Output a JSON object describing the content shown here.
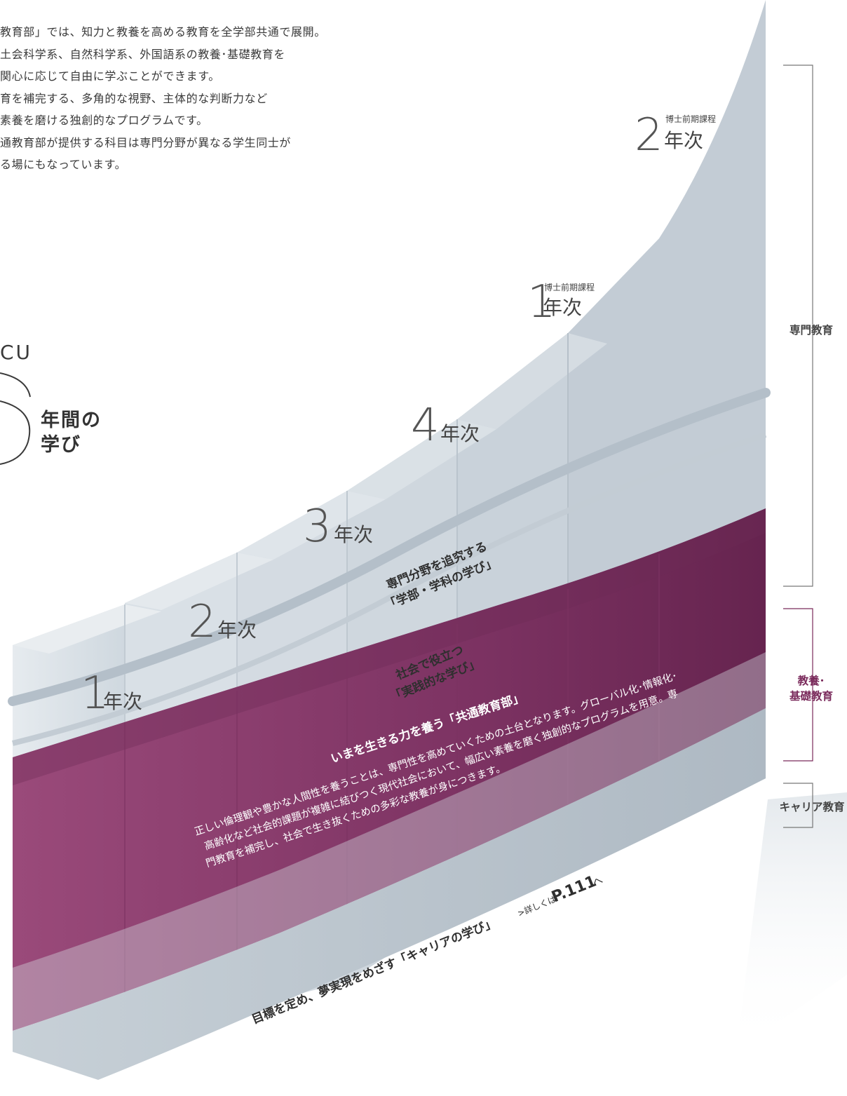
{
  "intro_lines": [
    "教育部」では、知力と教養を高める教育を全学部共通で展開。",
    "土会科学系、自然科学系、外国語系の教養･基礎教育を",
    "関心に応じて自由に学ぶことができます。",
    "育を補完する、多角的な視野、主体的な判断力など",
    "素養を磨ける独創的なプログラムです。",
    "通教育部が提供する科目は専門分野が異なる学生同士が",
    "る場にもなっています。"
  ],
  "logo": {
    "cu": "CU",
    "years_line1": "年間の",
    "years_line2": "学び"
  },
  "steps": [
    {
      "numeral": "1",
      "label": "年次",
      "sublabel": ""
    },
    {
      "numeral": "2",
      "label": "年次",
      "sublabel": ""
    },
    {
      "numeral": "3",
      "label": "年次",
      "sublabel": ""
    },
    {
      "numeral": "4",
      "label": "年次",
      "sublabel": ""
    },
    {
      "numeral": "1",
      "label": "年次",
      "sublabel": "博士前期課程"
    },
    {
      "numeral": "2",
      "label": "年次",
      "sublabel": "博士前期課程"
    }
  ],
  "senmon_caption": {
    "line1": "専門分野を追究する",
    "line2": "「学部・学科の学び」"
  },
  "jissen_caption": {
    "line1": "社会で役立つ",
    "line2": "「実践的な学び」"
  },
  "kyotsu": {
    "title": "いまを生きる力を養う「共通教育部」",
    "lines": [
      "正しい倫理観や豊かな人間性を養うことは、専門性を高めていくための土台となります。グローバル化･情報化･",
      "高齢化など社会的課題が複雑に結びつく現代社会において、幅広い素養を磨く独創的なプログラムを用意。専",
      "門教育を補完し、社会で生き抜くための多彩な教養が身につきます。"
    ]
  },
  "career": {
    "text": "目標を定め、夢実現をめざす「キャリアの学び」",
    "ref_prefix": ">詳しくは",
    "ref_page": "P.111",
    "ref_suffix": "へ"
  },
  "brackets": {
    "senmon": "専門教育",
    "kyoyo_line1": "教養･",
    "kyoyo_line2": "基礎教育",
    "career": "キャリア教育"
  },
  "colors": {
    "step_top": "#dfe5ea",
    "step_front": "#c9d2da",
    "step_shadow": "#b7c2cc",
    "plum": "#8e3a6e",
    "plum_dark": "#6e2a56",
    "plum_label": "#7a2a5b",
    "career_band": "#b9c4cd",
    "text": "#333333"
  }
}
